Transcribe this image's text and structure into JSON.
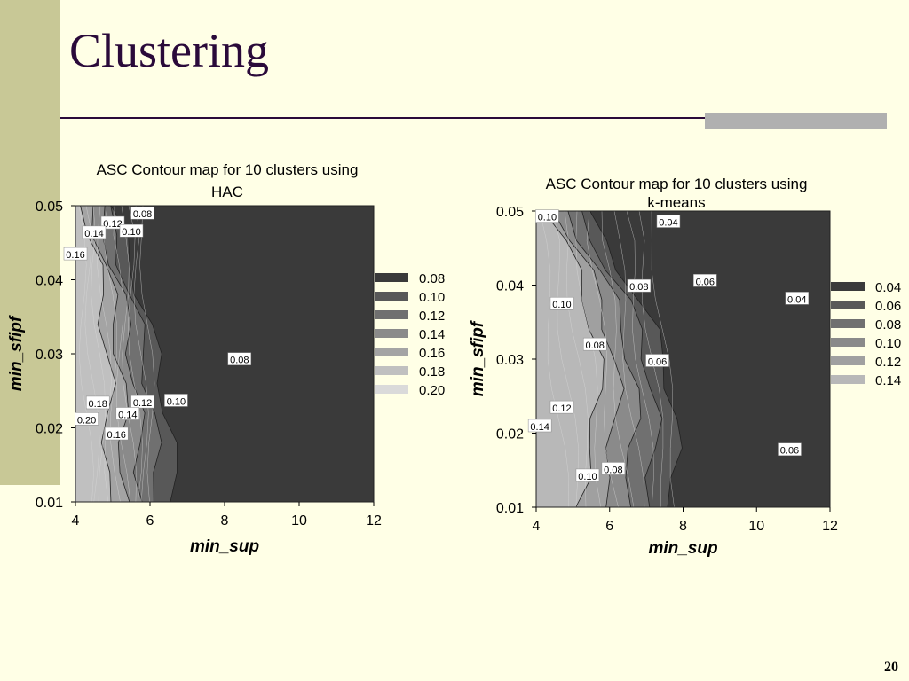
{
  "slide": {
    "title": "Clustering",
    "page_number": "20"
  },
  "colors": {
    "background": "#ffffe6",
    "side_bar": "#c8c896",
    "title": "#2a0a3a",
    "rule_block": "#b0b0b0"
  },
  "chart_data": [
    {
      "type": "heatmap",
      "subtype": "filled-contour",
      "title": "ASC Contour map for 10 clusters using HAC",
      "xlabel": "min_sup",
      "ylabel": "min_sfipf",
      "xlim": [
        4,
        12
      ],
      "ylim": [
        0.01,
        0.05
      ],
      "x_ticks": [
        "4",
        "6",
        "8",
        "10",
        "12"
      ],
      "y_ticks": [
        "0.01",
        "0.02",
        "0.03",
        "0.04",
        "0.05"
      ],
      "legend": {
        "placement": "right",
        "entries": [
          {
            "label": "0.08",
            "color": "#3a3a3a"
          },
          {
            "label": "0.10",
            "color": "#585858"
          },
          {
            "label": "0.12",
            "color": "#707070"
          },
          {
            "label": "0.14",
            "color": "#8a8a8a"
          },
          {
            "label": "0.16",
            "color": "#a4a4a4"
          },
          {
            "label": "0.18",
            "color": "#c0c0c0"
          },
          {
            "label": "0.20",
            "color": "#dadada"
          }
        ]
      },
      "contour_labels": [
        {
          "text": "0.08",
          "x": 5.8,
          "y": 0.0489
        },
        {
          "text": "0.12",
          "x": 5.0,
          "y": 0.0476
        },
        {
          "text": "0.14",
          "x": 4.5,
          "y": 0.0463
        },
        {
          "text": "0.10",
          "x": 5.5,
          "y": 0.0465
        },
        {
          "text": "0.16",
          "x": 4.0,
          "y": 0.0434
        },
        {
          "text": "0.08",
          "x": 8.4,
          "y": 0.0292
        },
        {
          "text": "0.18",
          "x": 4.6,
          "y": 0.0233
        },
        {
          "text": "0.12",
          "x": 5.8,
          "y": 0.0234
        },
        {
          "text": "0.10",
          "x": 6.7,
          "y": 0.0236
        },
        {
          "text": "0.14",
          "x": 5.4,
          "y": 0.0218
        },
        {
          "text": "0.20",
          "x": 4.3,
          "y": 0.0211
        },
        {
          "text": "0.16",
          "x": 5.1,
          "y": 0.0191
        }
      ]
    },
    {
      "type": "heatmap",
      "subtype": "filled-contour",
      "title": "ASC Contour map for 10 clusters using k-means",
      "xlabel": "min_sup",
      "ylabel": "min_sfipf",
      "xlim": [
        4,
        12
      ],
      "ylim": [
        0.01,
        0.05
      ],
      "x_ticks": [
        "4",
        "6",
        "8",
        "10",
        "12"
      ],
      "y_ticks": [
        "0.01",
        "0.02",
        "0.03",
        "0.04",
        "0.05"
      ],
      "legend": {
        "placement": "right",
        "entries": [
          {
            "label": "0.04",
            "color": "#3a3a3a"
          },
          {
            "label": "0.06",
            "color": "#585858"
          },
          {
            "label": "0.08",
            "color": "#707070"
          },
          {
            "label": "0.10",
            "color": "#8a8a8a"
          },
          {
            "label": "0.12",
            "color": "#a0a0a0"
          },
          {
            "label": "0.14",
            "color": "#b8b8b8"
          }
        ]
      },
      "contour_labels": [
        {
          "text": "0.10",
          "x": 4.3,
          "y": 0.0492
        },
        {
          "text": "0.04",
          "x": 7.6,
          "y": 0.0485
        },
        {
          "text": "0.08",
          "x": 6.8,
          "y": 0.0398
        },
        {
          "text": "0.06",
          "x": 8.6,
          "y": 0.0405
        },
        {
          "text": "0.04",
          "x": 11.1,
          "y": 0.0381
        },
        {
          "text": "0.10",
          "x": 4.7,
          "y": 0.0374
        },
        {
          "text": "0.08",
          "x": 5.6,
          "y": 0.0319
        },
        {
          "text": "0.06",
          "x": 7.3,
          "y": 0.0297
        },
        {
          "text": "0.12",
          "x": 4.7,
          "y": 0.0234
        },
        {
          "text": "0.14",
          "x": 4.1,
          "y": 0.0209
        },
        {
          "text": "0.06",
          "x": 10.9,
          "y": 0.0177
        },
        {
          "text": "0.08",
          "x": 6.1,
          "y": 0.0151
        },
        {
          "text": "0.10",
          "x": 5.4,
          "y": 0.0142
        }
      ]
    }
  ]
}
